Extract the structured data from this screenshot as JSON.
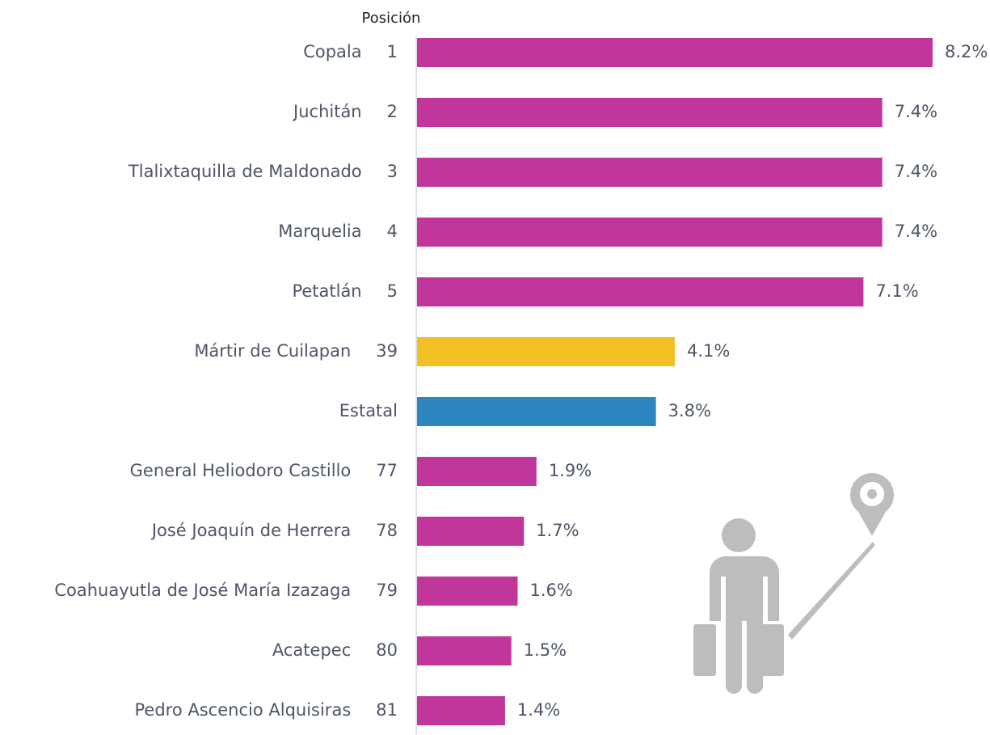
{
  "chart_data": {
    "type": "bar",
    "orientation": "horizontal",
    "position_header": "Posición",
    "categories": [
      "Copala",
      "Juchitán",
      "Tlalixtaquilla de Maldonado",
      "Marquelia",
      "Petatlán",
      "Mártir de Cuilapan",
      "Estatal",
      "General Heliodoro Castillo",
      "José Joaquín de Herrera",
      "Coahuayutla de José María Izazaga",
      "Acatepec",
      "Pedro Ascencio Alquisiras"
    ],
    "positions": [
      "1",
      "2",
      "3",
      "4",
      "5",
      "39",
      null,
      "77",
      "78",
      "79",
      "80",
      "81"
    ],
    "values": [
      8.2,
      7.4,
      7.4,
      7.4,
      7.1,
      4.1,
      3.8,
      1.9,
      1.7,
      1.6,
      1.5,
      1.4
    ],
    "value_labels": [
      "8.2%",
      "7.4%",
      "7.4%",
      "7.4%",
      "7.1%",
      "4.1%",
      "3.8%",
      "1.9%",
      "1.7%",
      "1.6%",
      "1.5%",
      "1.4%"
    ],
    "colors": [
      "#c0369a",
      "#c0369a",
      "#c0369a",
      "#c0369a",
      "#c0369a",
      "#f2c024",
      "#2e86c1",
      "#c0369a",
      "#c0369a",
      "#c0369a",
      "#c0369a",
      "#c0369a"
    ]
  }
}
